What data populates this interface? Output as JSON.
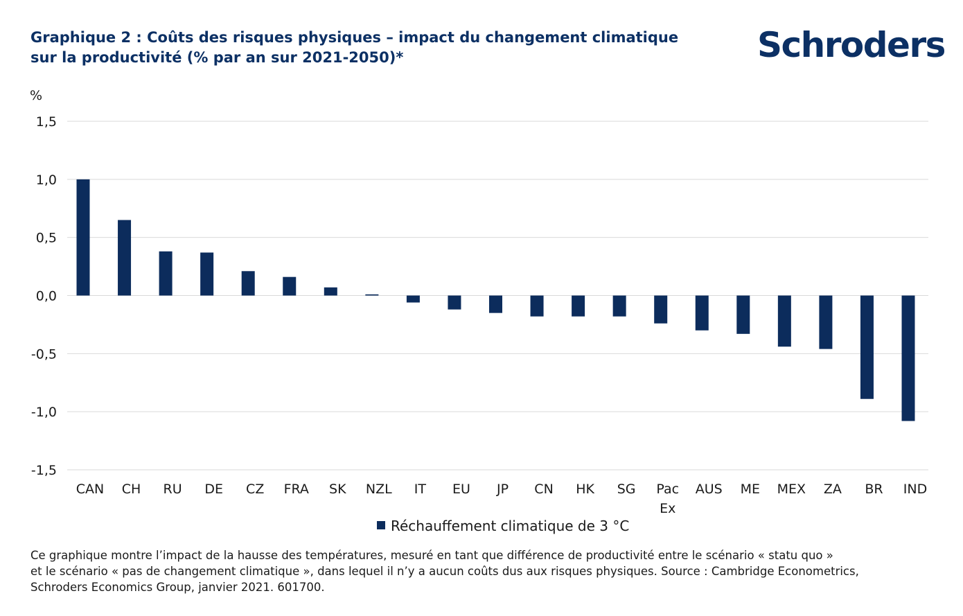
{
  "title_lines": [
    "Graphique 2 : Coûts des risques physiques – impact du changement climatique",
    "sur la productivité (% par an sur 2021-2050)*"
  ],
  "brand": "Schroders",
  "colors": {
    "bar": "#0c2c5c",
    "title": "#0c3064",
    "grid": "#d9d9d9"
  },
  "chart_data": {
    "type": "bar",
    "ylabel": "%",
    "ylim": [
      -1.5,
      1.5
    ],
    "yticks": [
      1.5,
      1.0,
      0.5,
      0.0,
      -0.5,
      -1.0,
      -1.5
    ],
    "ytick_labels": [
      "1,5",
      "1,0",
      "0,5",
      "0,0",
      "-0,5",
      "-1,0",
      "-1,5"
    ],
    "grid": true,
    "legend_position": "bottom-center",
    "categories": [
      [
        "CAN"
      ],
      [
        "CH"
      ],
      [
        "RU"
      ],
      [
        "DE"
      ],
      [
        "CZ"
      ],
      [
        "FRA"
      ],
      [
        "SK"
      ],
      [
        "NZL"
      ],
      [
        "IT"
      ],
      [
        "EU"
      ],
      [
        "JP"
      ],
      [
        "CN"
      ],
      [
        "HK"
      ],
      [
        "SG"
      ],
      [
        "Pac",
        "Ex"
      ],
      [
        "AUS"
      ],
      [
        "ME"
      ],
      [
        "MEX"
      ],
      [
        "ZA"
      ],
      [
        "BR"
      ],
      [
        "IND"
      ]
    ],
    "series": [
      {
        "name": "Réchauffement climatique de 3 °C",
        "values": [
          1.0,
          0.65,
          0.38,
          0.37,
          0.21,
          0.16,
          0.07,
          0.01,
          -0.06,
          -0.12,
          -0.15,
          -0.18,
          -0.18,
          -0.18,
          -0.24,
          -0.3,
          -0.33,
          -0.44,
          -0.46,
          -0.89,
          -1.08
        ]
      }
    ]
  },
  "footnote_lines": [
    "Ce graphique montre l’impact de la hausse des températures, mesuré en tant que différence de productivité entre le scénario « statu quo »",
    "et le scénario « pas de changement climatique », dans lequel il n’y a aucun coûts dus aux risques physiques. Source : Cambridge Econometrics,",
    "Schroders Economics Group, janvier 2021. 601700."
  ]
}
